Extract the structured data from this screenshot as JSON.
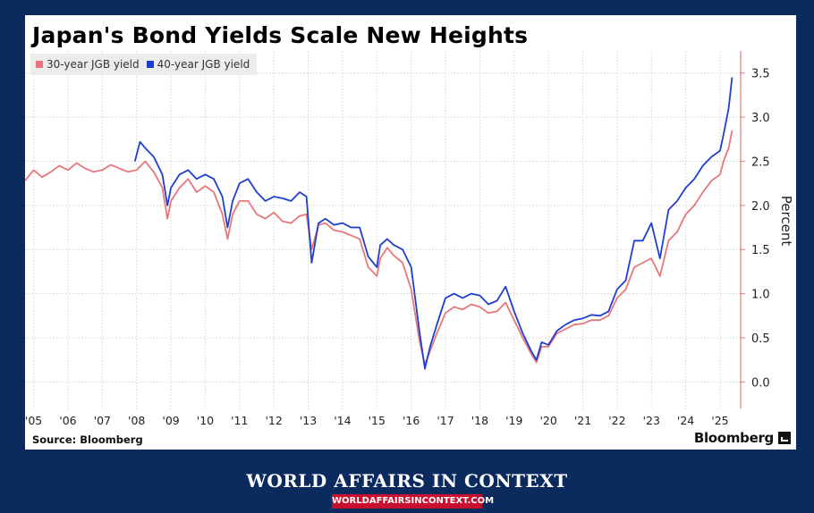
{
  "footer": {
    "title": "WORLD AFFAIRS IN CONTEXT",
    "url": "WORLDAFFAIRSINCONTEXT.COM"
  },
  "source": "Source: Bloomberg",
  "brand": "Bloomberg",
  "colors": {
    "series_30y": "#e8777c",
    "series_40y": "#1f3fcf",
    "axis": "#e8777c",
    "grid": "#d4d4d4",
    "page_bg": "#0b2a5e"
  },
  "chart_data": {
    "type": "line",
    "title": "Japan's Bond Yields Scale New Heights",
    "ylabel": "Percent",
    "xlabel": "",
    "ylim": [
      -0.3,
      3.75
    ],
    "xlim": [
      2004.75,
      2025.6
    ],
    "yticks": [
      0.0,
      0.5,
      1.0,
      1.5,
      2.0,
      2.5,
      3.0,
      3.5
    ],
    "yticks_labels": [
      "0.0",
      "0.5",
      "1.0",
      "1.5",
      "2.0",
      "2.5",
      "3.0",
      "3.5"
    ],
    "xticks": [
      2005,
      2006,
      2007,
      2008,
      2009,
      2010,
      2011,
      2012,
      2013,
      2014,
      2015,
      2016,
      2017,
      2018,
      2019,
      2020,
      2021,
      2022,
      2023,
      2024,
      2025
    ],
    "xticks_labels": [
      "'05",
      "'06",
      "'07",
      "'08",
      "'09",
      "'10",
      "'11",
      "'12",
      "'13",
      "'14",
      "'15",
      "'16",
      "'17",
      "'18",
      "'19",
      "'20",
      "'21",
      "'22",
      "'23",
      "'24",
      "'25"
    ],
    "grid": true,
    "legend_position": "top-left",
    "y_axis_side": "right",
    "series": [
      {
        "name": "30-year JGB yield",
        "x": [
          2004.75,
          2005.0,
          2005.25,
          2005.5,
          2005.75,
          2006.0,
          2006.25,
          2006.5,
          2006.75,
          2007.0,
          2007.25,
          2007.5,
          2007.75,
          2008.0,
          2008.25,
          2008.5,
          2008.75,
          2008.9,
          2009.0,
          2009.25,
          2009.5,
          2009.75,
          2010.0,
          2010.25,
          2010.5,
          2010.65,
          2010.8,
          2011.0,
          2011.25,
          2011.5,
          2011.75,
          2012.0,
          2012.25,
          2012.5,
          2012.75,
          2012.95,
          2013.1,
          2013.3,
          2013.5,
          2013.75,
          2014.0,
          2014.25,
          2014.5,
          2014.75,
          2015.0,
          2015.1,
          2015.3,
          2015.5,
          2015.75,
          2016.0,
          2016.25,
          2016.4,
          2016.55,
          2016.75,
          2017.0,
          2017.25,
          2017.5,
          2017.75,
          2018.0,
          2018.25,
          2018.5,
          2018.75,
          2019.0,
          2019.25,
          2019.5,
          2019.65,
          2019.8,
          2020.0,
          2020.25,
          2020.5,
          2020.75,
          2021.0,
          2021.25,
          2021.5,
          2021.75,
          2022.0,
          2022.25,
          2022.5,
          2022.75,
          2023.0,
          2023.25,
          2023.5,
          2023.75,
          2024.0,
          2024.25,
          2024.5,
          2024.75,
          2025.0,
          2025.1,
          2025.25,
          2025.35
        ],
        "values": [
          2.28,
          2.4,
          2.32,
          2.38,
          2.45,
          2.4,
          2.48,
          2.42,
          2.38,
          2.4,
          2.46,
          2.42,
          2.38,
          2.4,
          2.5,
          2.38,
          2.2,
          1.85,
          2.05,
          2.2,
          2.3,
          2.15,
          2.22,
          2.15,
          1.9,
          1.62,
          1.9,
          2.05,
          2.05,
          1.9,
          1.85,
          1.92,
          1.82,
          1.8,
          1.88,
          1.9,
          1.5,
          1.78,
          1.8,
          1.72,
          1.7,
          1.66,
          1.62,
          1.3,
          1.2,
          1.4,
          1.52,
          1.43,
          1.35,
          1.05,
          0.45,
          0.2,
          0.35,
          0.55,
          0.78,
          0.85,
          0.82,
          0.88,
          0.85,
          0.78,
          0.8,
          0.9,
          0.7,
          0.5,
          0.32,
          0.22,
          0.4,
          0.4,
          0.55,
          0.6,
          0.65,
          0.66,
          0.7,
          0.7,
          0.75,
          0.95,
          1.05,
          1.3,
          1.35,
          1.4,
          1.2,
          1.6,
          1.7,
          1.9,
          2.0,
          2.15,
          2.28,
          2.35,
          2.5,
          2.65,
          2.85
        ]
      },
      {
        "name": "40-year JGB yield",
        "x": [
          2007.95,
          2008.1,
          2008.25,
          2008.5,
          2008.75,
          2008.9,
          2009.0,
          2009.25,
          2009.5,
          2009.75,
          2010.0,
          2010.25,
          2010.5,
          2010.65,
          2010.8,
          2011.0,
          2011.25,
          2011.5,
          2011.75,
          2012.0,
          2012.25,
          2012.5,
          2012.75,
          2012.95,
          2013.1,
          2013.3,
          2013.5,
          2013.75,
          2014.0,
          2014.25,
          2014.5,
          2014.75,
          2015.0,
          2015.1,
          2015.3,
          2015.5,
          2015.75,
          2016.0,
          2016.25,
          2016.4,
          2016.55,
          2016.75,
          2017.0,
          2017.25,
          2017.5,
          2017.75,
          2018.0,
          2018.25,
          2018.5,
          2018.75,
          2019.0,
          2019.25,
          2019.5,
          2019.65,
          2019.8,
          2020.0,
          2020.25,
          2020.5,
          2020.75,
          2021.0,
          2021.25,
          2021.5,
          2021.75,
          2022.0,
          2022.25,
          2022.5,
          2022.75,
          2023.0,
          2023.25,
          2023.5,
          2023.75,
          2024.0,
          2024.25,
          2024.5,
          2024.75,
          2025.0,
          2025.1,
          2025.25,
          2025.35
        ],
        "values": [
          2.5,
          2.72,
          2.65,
          2.55,
          2.35,
          2.0,
          2.2,
          2.35,
          2.4,
          2.3,
          2.35,
          2.3,
          2.1,
          1.75,
          2.05,
          2.25,
          2.3,
          2.15,
          2.05,
          2.1,
          2.08,
          2.05,
          2.15,
          2.1,
          1.35,
          1.8,
          1.85,
          1.78,
          1.8,
          1.75,
          1.75,
          1.42,
          1.3,
          1.55,
          1.62,
          1.55,
          1.5,
          1.3,
          0.55,
          0.15,
          0.4,
          0.65,
          0.95,
          1.0,
          0.95,
          1.0,
          0.98,
          0.88,
          0.92,
          1.08,
          0.8,
          0.55,
          0.35,
          0.25,
          0.45,
          0.42,
          0.58,
          0.65,
          0.7,
          0.72,
          0.76,
          0.75,
          0.8,
          1.05,
          1.15,
          1.6,
          1.6,
          1.8,
          1.4,
          1.95,
          2.05,
          2.2,
          2.3,
          2.45,
          2.55,
          2.62,
          2.8,
          3.1,
          3.45
        ]
      }
    ]
  }
}
